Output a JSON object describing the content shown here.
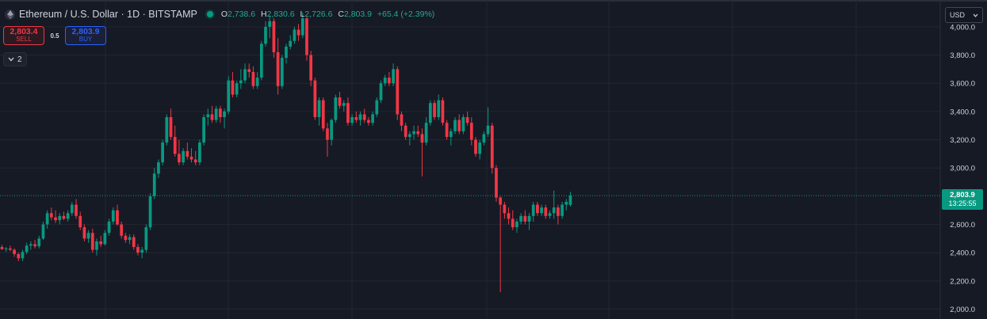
{
  "header": {
    "symbol": "Ethereum / U.S. Dollar · 1D · BITSTAMP",
    "o_label": "O",
    "o_value": "2,738.6",
    "h_label": "H",
    "h_value": "2,830.6",
    "l_label": "L",
    "l_value": "2,726.6",
    "c_label": "C",
    "c_value": "2,803.9",
    "change": "+65.4 (+2.39%)"
  },
  "trade": {
    "sell_price": "2,803.4",
    "sell_label": "SELL",
    "spread": "0.5",
    "buy_price": "2,803.9",
    "buy_label": "BUY"
  },
  "indicators_toggle": "2",
  "currency": "USD",
  "last_price": {
    "value": "2,803.9",
    "countdown": "13:25:55"
  },
  "colors": {
    "up": "#089981",
    "down": "#f23645",
    "grid": "#232631",
    "background": "#161a25"
  },
  "chart_data": {
    "type": "candlestick",
    "ylim": [
      1930,
      4190
    ],
    "y_ticks": [
      {
        "value": 4000,
        "label": "4,000.0"
      },
      {
        "value": 3800,
        "label": "3,800.0"
      },
      {
        "value": 3600,
        "label": "3,600.0"
      },
      {
        "value": 3400,
        "label": "3,400.0"
      },
      {
        "value": 3200,
        "label": "3,200.0"
      },
      {
        "value": 3000,
        "label": "3,000.0"
      },
      {
        "value": 2600,
        "label": "2,600.0"
      },
      {
        "value": 2400,
        "label": "2,400.0"
      },
      {
        "value": 2200,
        "label": "2,200.0"
      },
      {
        "value": 2000,
        "label": "2,000.0"
      }
    ],
    "last_close": 2803.9,
    "candles": [
      [
        2440,
        2455,
        2420,
        2425
      ],
      [
        2425,
        2440,
        2405,
        2430
      ],
      [
        2430,
        2450,
        2410,
        2420
      ],
      [
        2420,
        2430,
        2370,
        2390
      ],
      [
        2390,
        2400,
        2340,
        2360
      ],
      [
        2360,
        2420,
        2340,
        2405
      ],
      [
        2405,
        2470,
        2390,
        2450
      ],
      [
        2450,
        2480,
        2420,
        2460
      ],
      [
        2460,
        2490,
        2430,
        2445
      ],
      [
        2445,
        2520,
        2430,
        2500
      ],
      [
        2500,
        2620,
        2490,
        2600
      ],
      [
        2600,
        2700,
        2570,
        2680
      ],
      [
        2680,
        2720,
        2630,
        2650
      ],
      [
        2650,
        2700,
        2610,
        2630
      ],
      [
        2630,
        2680,
        2600,
        2660
      ],
      [
        2660,
        2690,
        2630,
        2640
      ],
      [
        2640,
        2700,
        2620,
        2680
      ],
      [
        2680,
        2760,
        2660,
        2740
      ],
      [
        2740,
        2780,
        2640,
        2660
      ],
      [
        2660,
        2690,
        2560,
        2580
      ],
      [
        2580,
        2600,
        2480,
        2500
      ],
      [
        2500,
        2560,
        2470,
        2540
      ],
      [
        2540,
        2570,
        2400,
        2420
      ],
      [
        2420,
        2500,
        2380,
        2480
      ],
      [
        2480,
        2520,
        2440,
        2460
      ],
      [
        2460,
        2560,
        2450,
        2540
      ],
      [
        2540,
        2640,
        2520,
        2620
      ],
      [
        2620,
        2720,
        2600,
        2700
      ],
      [
        2700,
        2740,
        2590,
        2600
      ],
      [
        2600,
        2620,
        2500,
        2520
      ],
      [
        2520,
        2540,
        2470,
        2490
      ],
      [
        2490,
        2530,
        2460,
        2510
      ],
      [
        2510,
        2530,
        2420,
        2440
      ],
      [
        2440,
        2460,
        2380,
        2400
      ],
      [
        2400,
        2440,
        2360,
        2420
      ],
      [
        2420,
        2600,
        2400,
        2580
      ],
      [
        2580,
        2820,
        2560,
        2800
      ],
      [
        2800,
        3000,
        2780,
        2960
      ],
      [
        2960,
        3060,
        2930,
        3040
      ],
      [
        3040,
        3200,
        3020,
        3180
      ],
      [
        3180,
        3380,
        3160,
        3360
      ],
      [
        3360,
        3420,
        3200,
        3220
      ],
      [
        3220,
        3300,
        3080,
        3100
      ],
      [
        3100,
        3200,
        3020,
        3040
      ],
      [
        3040,
        3140,
        3020,
        3120
      ],
      [
        3120,
        3180,
        3060,
        3080
      ],
      [
        3080,
        3140,
        3040,
        3060
      ],
      [
        3060,
        3120,
        3020,
        3040
      ],
      [
        3040,
        3200,
        3020,
        3180
      ],
      [
        3180,
        3380,
        3160,
        3360
      ],
      [
        3360,
        3420,
        3300,
        3380
      ],
      [
        3380,
        3440,
        3320,
        3340
      ],
      [
        3340,
        3440,
        3320,
        3420
      ],
      [
        3420,
        3440,
        3320,
        3360
      ],
      [
        3360,
        3420,
        3280,
        3400
      ],
      [
        3400,
        3650,
        3380,
        3620
      ],
      [
        3620,
        3680,
        3500,
        3520
      ],
      [
        3520,
        3620,
        3500,
        3600
      ],
      [
        3600,
        3700,
        3560,
        3620
      ],
      [
        3620,
        3740,
        3600,
        3700
      ],
      [
        3700,
        3740,
        3640,
        3680
      ],
      [
        3680,
        3720,
        3560,
        3580
      ],
      [
        3580,
        3680,
        3560,
        3640
      ],
      [
        3640,
        3900,
        3620,
        3880
      ],
      [
        3880,
        4040,
        3860,
        4000
      ],
      [
        4000,
        4080,
        3920,
        4040
      ],
      [
        4040,
        4060,
        3780,
        3820
      ],
      [
        3820,
        3920,
        3520,
        3580
      ],
      [
        3580,
        3800,
        3560,
        3780
      ],
      [
        3780,
        3880,
        3740,
        3860
      ],
      [
        3860,
        3940,
        3840,
        3900
      ],
      [
        3900,
        4000,
        3880,
        3980
      ],
      [
        3980,
        4020,
        3900,
        3940
      ],
      [
        3940,
        4100,
        3920,
        4060
      ],
      [
        4060,
        4070,
        3760,
        3800
      ],
      [
        3800,
        3830,
        3580,
        3620
      ],
      [
        3620,
        3640,
        3340,
        3360
      ],
      [
        3360,
        3500,
        3300,
        3480
      ],
      [
        3480,
        3500,
        3260,
        3280
      ],
      [
        3280,
        3320,
        3080,
        3200
      ],
      [
        3200,
        3350,
        3160,
        3340
      ],
      [
        3340,
        3520,
        3320,
        3500
      ],
      [
        3500,
        3540,
        3420,
        3440
      ],
      [
        3440,
        3480,
        3400,
        3460
      ],
      [
        3460,
        3500,
        3300,
        3320
      ],
      [
        3320,
        3380,
        3300,
        3360
      ],
      [
        3360,
        3400,
        3320,
        3340
      ],
      [
        3340,
        3400,
        3300,
        3380
      ],
      [
        3380,
        3420,
        3320,
        3340
      ],
      [
        3340,
        3360,
        3300,
        3320
      ],
      [
        3320,
        3400,
        3300,
        3380
      ],
      [
        3380,
        3500,
        3360,
        3480
      ],
      [
        3480,
        3620,
        3460,
        3600
      ],
      [
        3600,
        3660,
        3580,
        3640
      ],
      [
        3640,
        3680,
        3580,
        3600
      ],
      [
        3600,
        3740,
        3580,
        3700
      ],
      [
        3700,
        3720,
        3340,
        3380
      ],
      [
        3380,
        3400,
        3260,
        3300
      ],
      [
        3300,
        3320,
        3200,
        3220
      ],
      [
        3220,
        3260,
        3160,
        3240
      ],
      [
        3240,
        3300,
        3200,
        3260
      ],
      [
        3260,
        3300,
        3220,
        3240
      ],
      [
        3240,
        3280,
        2940,
        3180
      ],
      [
        3180,
        3360,
        3160,
        3320
      ],
      [
        3320,
        3480,
        3300,
        3460
      ],
      [
        3460,
        3480,
        3340,
        3360
      ],
      [
        3360,
        3520,
        3340,
        3480
      ],
      [
        3480,
        3500,
        3300,
        3320
      ],
      [
        3320,
        3340,
        3200,
        3220
      ],
      [
        3220,
        3280,
        3160,
        3260
      ],
      [
        3260,
        3360,
        3240,
        3340
      ],
      [
        3340,
        3380,
        3240,
        3260
      ],
      [
        3260,
        3380,
        3240,
        3360
      ],
      [
        3360,
        3400,
        3300,
        3320
      ],
      [
        3320,
        3360,
        3160,
        3200
      ],
      [
        3200,
        3220,
        3080,
        3100
      ],
      [
        3100,
        3200,
        3060,
        3180
      ],
      [
        3180,
        3260,
        3160,
        3240
      ],
      [
        3240,
        3430,
        3220,
        3300
      ],
      [
        3300,
        3320,
        2960,
        3000
      ],
      [
        3000,
        3020,
        2760,
        2790
      ],
      [
        2790,
        2800,
        2120,
        2740
      ],
      [
        2740,
        2760,
        2640,
        2680
      ],
      [
        2680,
        2720,
        2600,
        2640
      ],
      [
        2640,
        2700,
        2560,
        2580
      ],
      [
        2580,
        2640,
        2540,
        2620
      ],
      [
        2620,
        2680,
        2600,
        2660
      ],
      [
        2660,
        2700,
        2600,
        2620
      ],
      [
        2620,
        2680,
        2560,
        2660
      ],
      [
        2660,
        2760,
        2620,
        2740
      ],
      [
        2740,
        2760,
        2660,
        2680
      ],
      [
        2680,
        2740,
        2660,
        2720
      ],
      [
        2720,
        2740,
        2640,
        2660
      ],
      [
        2660,
        2700,
        2640,
        2680
      ],
      [
        2680,
        2840,
        2640,
        2720
      ],
      [
        2720,
        2740,
        2600,
        2660
      ],
      [
        2660,
        2760,
        2640,
        2740
      ],
      [
        2740,
        2780,
        2700,
        2760
      ],
      [
        2738.6,
        2830.6,
        2726.6,
        2803.9
      ]
    ]
  }
}
